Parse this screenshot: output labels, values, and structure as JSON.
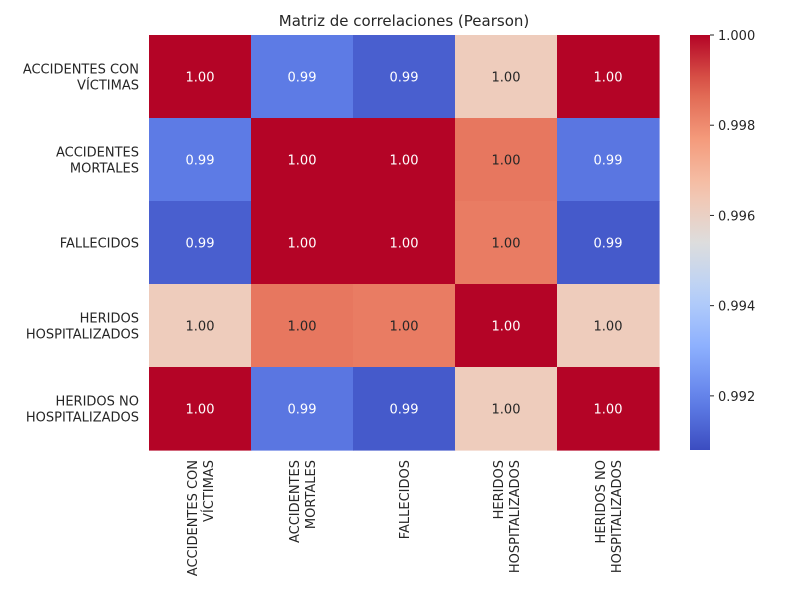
{
  "chart_data": {
    "type": "heatmap",
    "title": "Matriz de correlaciones (Pearson)",
    "row_labels": [
      [
        "ACCIDENTES CON",
        "VÍCTIMAS"
      ],
      [
        "ACCIDENTES",
        "MORTALES"
      ],
      [
        "FALLECIDOS"
      ],
      [
        "HERIDOS",
        "HOSPITALIZADOS"
      ],
      [
        "HERIDOS NO",
        "HOSPITALIZADOS"
      ]
    ],
    "col_labels": [
      [
        "ACCIDENTES CON",
        "VÍCTIMAS"
      ],
      [
        "ACCIDENTES",
        "MORTALES"
      ],
      [
        "FALLECIDOS"
      ],
      [
        "HERIDOS",
        "HOSPITALIZADOS"
      ],
      [
        "HERIDOS NO",
        "HOSPITALIZADOS"
      ]
    ],
    "values": [
      [
        1.0,
        0.9918,
        0.9912,
        0.9962,
        1.0
      ],
      [
        0.9918,
        1.0,
        1.0,
        0.9984,
        0.9917
      ],
      [
        0.9912,
        1.0,
        1.0,
        0.9983,
        0.9911
      ],
      [
        0.9962,
        0.9984,
        0.9983,
        1.0,
        0.9962
      ],
      [
        1.0,
        0.9917,
        0.9911,
        0.9962,
        1.0
      ]
    ],
    "cell_labels": [
      [
        "1.00",
        "0.99",
        "0.99",
        "1.00",
        "1.00"
      ],
      [
        "0.99",
        "1.00",
        "1.00",
        "1.00",
        "0.99"
      ],
      [
        "0.99",
        "1.00",
        "1.00",
        "1.00",
        "0.99"
      ],
      [
        "1.00",
        "1.00",
        "1.00",
        "1.00",
        "1.00"
      ],
      [
        "1.00",
        "0.99",
        "0.99",
        "1.00",
        "1.00"
      ]
    ],
    "colormap": "coolwarm",
    "colorbar": {
      "vmin": 0.9908,
      "vmax": 1.0,
      "ticks": [
        0.992,
        0.994,
        0.996,
        0.998,
        1.0
      ],
      "tick_labels": [
        "0.992",
        "0.994",
        "0.996",
        "0.998",
        "1.000"
      ]
    },
    "text_color_dark": "#262626",
    "text_color_light": "#ffffff"
  }
}
